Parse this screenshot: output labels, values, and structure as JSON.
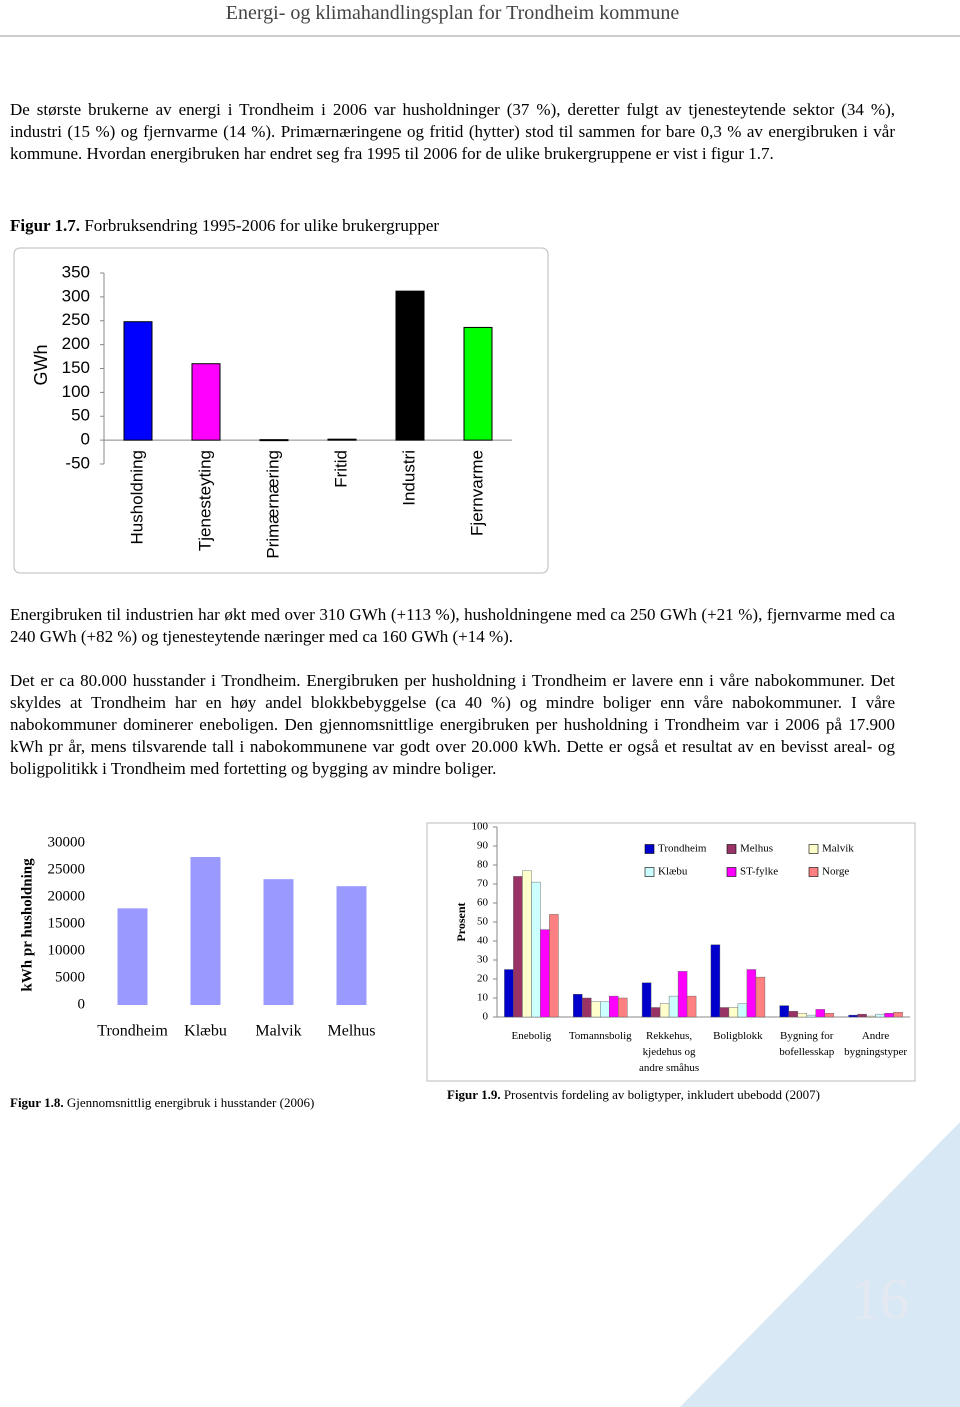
{
  "header": {
    "title": "Energi- og klimahandlingsplan for Trondheim kommune"
  },
  "paragraphs": [
    "De største brukerne av energi i Trondheim i 2006 var husholdninger (37 %), deretter fulgt av tjenesteytende sektor (34 %), industri (15 %) og fjernvarme (14 %). Primærnæringene og fritid (hytter) stod til sammen for bare 0,3 % av energibruken i vår kommune. Hvordan energibruken har endret seg fra 1995 til 2006 for de ulike brukergruppene er vist i figur 1.7.",
    "Energibruken til industrien har økt med over 310 GWh (+113 %), husholdningene med ca 250 GWh (+21 %), fjernvarme med ca 240 GWh (+82 %) og tjenesteytende næringer med ca 160 GWh (+14 %).",
    "Det er ca 80.000 husstander i Trondheim. Energibruken per husholdning i Trondheim er lavere enn i våre nabokommuner. Det skyldes at Trondheim har en høy andel blokkbebyggelse (ca 40 %) og mindre boliger enn våre nabokommuner. I våre nabokommuner dominerer eneboligen. Den gjennomsnittlige energibruken per husholdning i Trondheim var i 2006 på 17.900 kWh pr år, mens tilsvarende tall i nabokommunene var godt over 20.000 kWh. Dette er også et resultat av en bevisst areal- og boligpolitikk i Trondheim med fortetting og bygging av mindre boliger."
  ],
  "figures": [
    {
      "label": "Figur 1.7.",
      "caption": "Forbruksendring 1995-2006 for ulike brukergrupper"
    },
    {
      "label": "Figur 1.8.",
      "caption": "Gjennomsnittlig energibruk i husstander (2006)"
    },
    {
      "label": "Figur 1.9.",
      "caption": "Prosentvis fordeling av boligtyper, inkludert ubebodd (2007)"
    }
  ],
  "chart_data": [
    {
      "type": "bar",
      "y_label": "GWh",
      "categories": [
        "Husholdning",
        "Tjenesteyting",
        "Primærnæring",
        "Fritid",
        "Industri",
        "Fjernvarme"
      ],
      "values": [
        248,
        160,
        1,
        2,
        312,
        236
      ],
      "colors": [
        "#0000ff",
        "#ff00ff",
        "#404040",
        "#404040",
        "#000000",
        "#00ff00"
      ],
      "ylim": [
        -50,
        350
      ],
      "yticks": [
        -50,
        0,
        50,
        100,
        150,
        200,
        250,
        300,
        350
      ],
      "grid": false
    },
    {
      "type": "bar",
      "y_label": "kWh pr husholdning",
      "categories": [
        "Trondheim",
        "Klæbu",
        "Malvik",
        "Melhus"
      ],
      "values": [
        17900,
        27400,
        23300,
        22000
      ],
      "color": "#9999ff",
      "ylim": [
        0,
        30000
      ],
      "yticks": [
        0,
        5000,
        10000,
        15000,
        20000,
        25000,
        30000
      ],
      "grid": false
    },
    {
      "type": "grouped_bar",
      "y_label": "Prosent",
      "categories": [
        "Enebolig",
        "Tomannsbolig",
        "Rekkehus, kjedehus og andre småhus",
        "Boligblokk",
        "Bygning for bofellesskap",
        "Andre bygningstyper"
      ],
      "series": [
        {
          "name": "Trondheim",
          "color": "#0000cc",
          "values": [
            25,
            12,
            18,
            38,
            6,
            1
          ]
        },
        {
          "name": "Melhus",
          "color": "#993366",
          "values": [
            74,
            10,
            5,
            5,
            3,
            1.5
          ]
        },
        {
          "name": "Malvik",
          "color": "#ffffcc",
          "values": [
            77,
            8,
            7,
            5,
            2,
            0.5
          ]
        },
        {
          "name": "Klæbu",
          "color": "#ccffff",
          "values": [
            71,
            8,
            11,
            7,
            1,
            1.5
          ]
        },
        {
          "name": "ST-fylke",
          "color": "#ff00ff",
          "values": [
            46,
            11,
            24,
            25,
            4,
            2
          ]
        },
        {
          "name": "Norge",
          "color": "#ff8080",
          "values": [
            54,
            10,
            11,
            21,
            2,
            2.5
          ]
        }
      ],
      "ylim": [
        0,
        100
      ],
      "yticks": [
        0,
        10,
        20,
        30,
        40,
        50,
        60,
        70,
        80,
        90,
        100
      ],
      "grid": false,
      "legend": "upper right"
    }
  ],
  "page_number": "16"
}
